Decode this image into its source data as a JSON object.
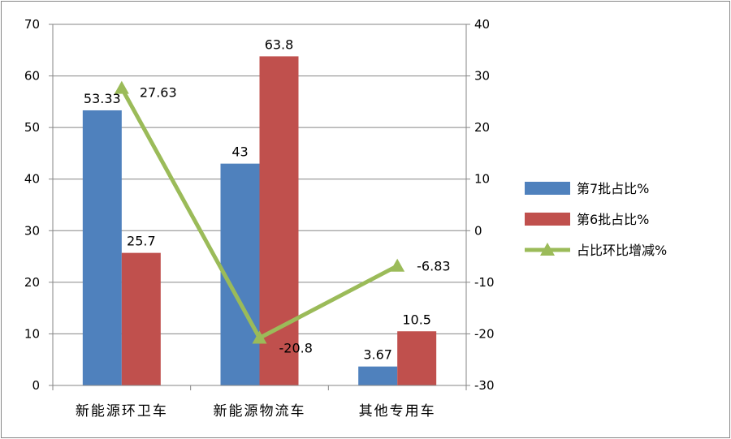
{
  "chart_data": {
    "type": "bar",
    "categories": [
      "新能源环卫车",
      "新能源物流车",
      "其他专用车"
    ],
    "series": [
      {
        "name": "第7批占比%",
        "kind": "bar",
        "axis": "left",
        "color": "#4F81BD",
        "values": [
          53.33,
          43,
          3.67
        ],
        "labels": [
          "53.33",
          "43",
          "3.67"
        ]
      },
      {
        "name": "第6批占比%",
        "kind": "bar",
        "axis": "left",
        "color": "#C0504D",
        "values": [
          25.7,
          63.8,
          10.5
        ],
        "labels": [
          "25.7",
          "63.8",
          "10.5"
        ]
      },
      {
        "name": "占比环比增减%",
        "kind": "line",
        "axis": "right",
        "marker": "triangle",
        "color": "#9BBB59",
        "values": [
          27.63,
          -20.8,
          -6.83
        ],
        "labels": [
          "27.63",
          "-20.8",
          "-6.83"
        ]
      }
    ],
    "y_left": {
      "min": 0,
      "max": 70,
      "step": 10,
      "ticks": [
        "0",
        "10",
        "20",
        "30",
        "40",
        "50",
        "60",
        "70"
      ]
    },
    "y_right": {
      "min": -30,
      "max": 40,
      "step": 10,
      "ticks": [
        "-30",
        "-20",
        "-10",
        "0",
        "10",
        "20",
        "30",
        "40"
      ]
    },
    "grid": true,
    "legend_position": "right",
    "title": "",
    "xlabel": "",
    "ylabel": ""
  }
}
